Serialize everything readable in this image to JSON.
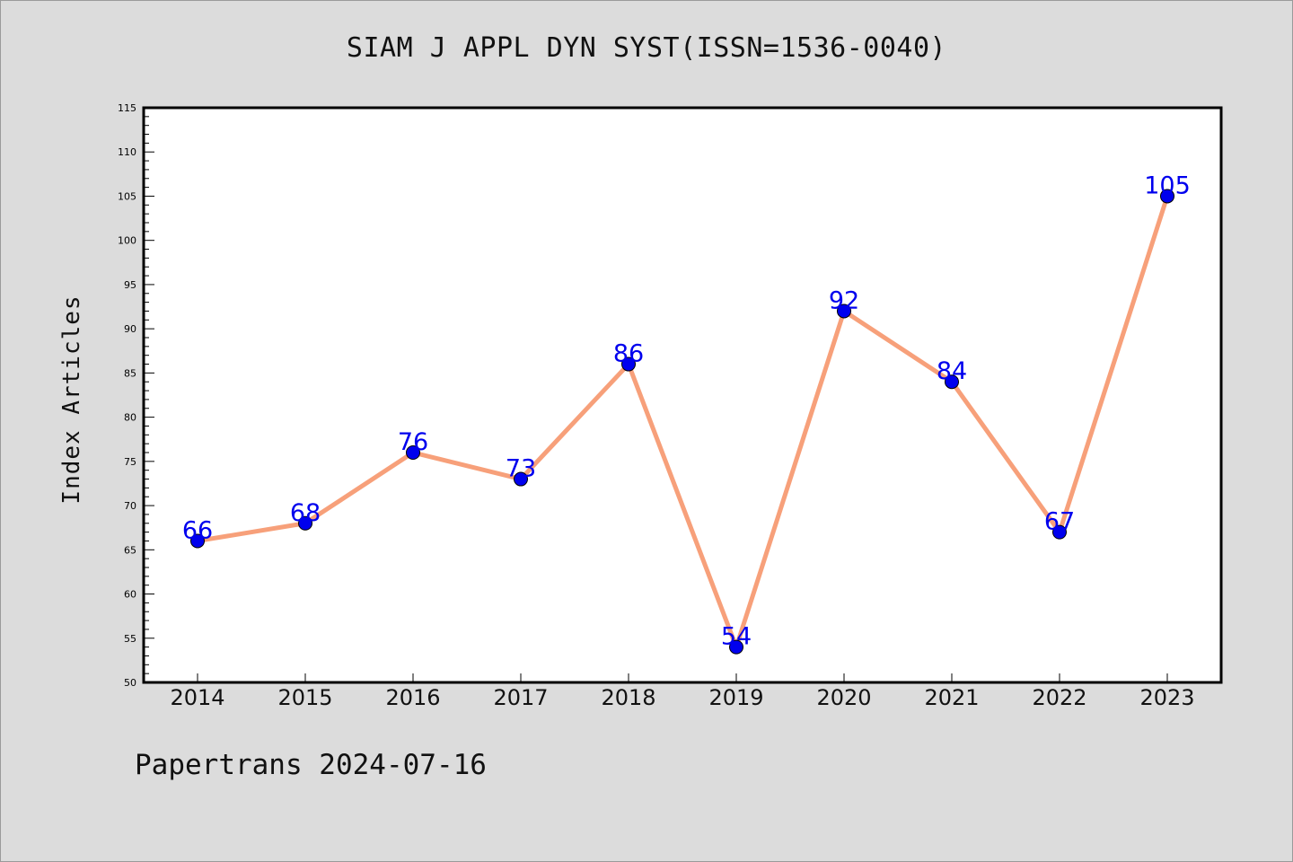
{
  "chart_data": {
    "type": "line",
    "title": "SIAM J APPL DYN SYST(ISSN=1536-0040)",
    "xlabel": "",
    "ylabel": "Index Articles",
    "categories": [
      "2014",
      "2015",
      "2016",
      "2017",
      "2018",
      "2019",
      "2020",
      "2021",
      "2022",
      "2023"
    ],
    "series": [
      {
        "values": [
          66,
          68,
          76,
          73,
          86,
          54,
          92,
          84,
          67,
          105
        ],
        "line_color": "#f7a07a",
        "marker_color": "#0000ee",
        "label_color": "#0000ee"
      }
    ],
    "ylim": [
      50,
      115
    ],
    "y_major_ticks": [
      50,
      55,
      60,
      65,
      70,
      75,
      80,
      85,
      90,
      95,
      100,
      105,
      110,
      115
    ],
    "y_minor_step": 1,
    "grid": false,
    "data_labels": true
  },
  "footer": {
    "text": "Papertrans 2024-07-16"
  }
}
